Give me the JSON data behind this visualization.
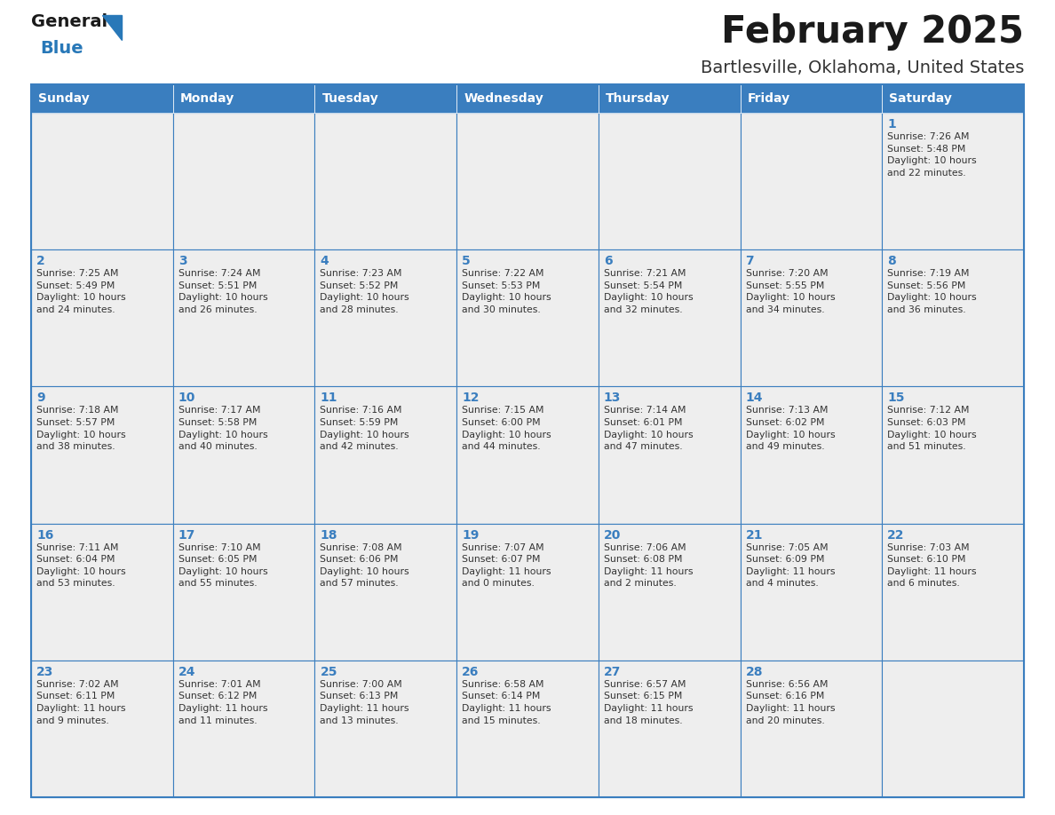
{
  "title": "February 2025",
  "subtitle": "Bartlesville, Oklahoma, United States",
  "days_of_week": [
    "Sunday",
    "Monday",
    "Tuesday",
    "Wednesday",
    "Thursday",
    "Friday",
    "Saturday"
  ],
  "header_bg": "#3a7ebf",
  "header_text": "#FFFFFF",
  "cell_bg": "#eeeeee",
  "border_color": "#3a7ebf",
  "text_color": "#333333",
  "day_num_color": "#3a7ebf",
  "title_color": "#1a1a1a",
  "subtitle_color": "#333333",
  "logo_general_color": "#1a1a1a",
  "logo_blue_color": "#2878b8",
  "weeks": [
    [
      {
        "day": null,
        "info": ""
      },
      {
        "day": null,
        "info": ""
      },
      {
        "day": null,
        "info": ""
      },
      {
        "day": null,
        "info": ""
      },
      {
        "day": null,
        "info": ""
      },
      {
        "day": null,
        "info": ""
      },
      {
        "day": 1,
        "info": "Sunrise: 7:26 AM\nSunset: 5:48 PM\nDaylight: 10 hours\nand 22 minutes."
      }
    ],
    [
      {
        "day": 2,
        "info": "Sunrise: 7:25 AM\nSunset: 5:49 PM\nDaylight: 10 hours\nand 24 minutes."
      },
      {
        "day": 3,
        "info": "Sunrise: 7:24 AM\nSunset: 5:51 PM\nDaylight: 10 hours\nand 26 minutes."
      },
      {
        "day": 4,
        "info": "Sunrise: 7:23 AM\nSunset: 5:52 PM\nDaylight: 10 hours\nand 28 minutes."
      },
      {
        "day": 5,
        "info": "Sunrise: 7:22 AM\nSunset: 5:53 PM\nDaylight: 10 hours\nand 30 minutes."
      },
      {
        "day": 6,
        "info": "Sunrise: 7:21 AM\nSunset: 5:54 PM\nDaylight: 10 hours\nand 32 minutes."
      },
      {
        "day": 7,
        "info": "Sunrise: 7:20 AM\nSunset: 5:55 PM\nDaylight: 10 hours\nand 34 minutes."
      },
      {
        "day": 8,
        "info": "Sunrise: 7:19 AM\nSunset: 5:56 PM\nDaylight: 10 hours\nand 36 minutes."
      }
    ],
    [
      {
        "day": 9,
        "info": "Sunrise: 7:18 AM\nSunset: 5:57 PM\nDaylight: 10 hours\nand 38 minutes."
      },
      {
        "day": 10,
        "info": "Sunrise: 7:17 AM\nSunset: 5:58 PM\nDaylight: 10 hours\nand 40 minutes."
      },
      {
        "day": 11,
        "info": "Sunrise: 7:16 AM\nSunset: 5:59 PM\nDaylight: 10 hours\nand 42 minutes."
      },
      {
        "day": 12,
        "info": "Sunrise: 7:15 AM\nSunset: 6:00 PM\nDaylight: 10 hours\nand 44 minutes."
      },
      {
        "day": 13,
        "info": "Sunrise: 7:14 AM\nSunset: 6:01 PM\nDaylight: 10 hours\nand 47 minutes."
      },
      {
        "day": 14,
        "info": "Sunrise: 7:13 AM\nSunset: 6:02 PM\nDaylight: 10 hours\nand 49 minutes."
      },
      {
        "day": 15,
        "info": "Sunrise: 7:12 AM\nSunset: 6:03 PM\nDaylight: 10 hours\nand 51 minutes."
      }
    ],
    [
      {
        "day": 16,
        "info": "Sunrise: 7:11 AM\nSunset: 6:04 PM\nDaylight: 10 hours\nand 53 minutes."
      },
      {
        "day": 17,
        "info": "Sunrise: 7:10 AM\nSunset: 6:05 PM\nDaylight: 10 hours\nand 55 minutes."
      },
      {
        "day": 18,
        "info": "Sunrise: 7:08 AM\nSunset: 6:06 PM\nDaylight: 10 hours\nand 57 minutes."
      },
      {
        "day": 19,
        "info": "Sunrise: 7:07 AM\nSunset: 6:07 PM\nDaylight: 11 hours\nand 0 minutes."
      },
      {
        "day": 20,
        "info": "Sunrise: 7:06 AM\nSunset: 6:08 PM\nDaylight: 11 hours\nand 2 minutes."
      },
      {
        "day": 21,
        "info": "Sunrise: 7:05 AM\nSunset: 6:09 PM\nDaylight: 11 hours\nand 4 minutes."
      },
      {
        "day": 22,
        "info": "Sunrise: 7:03 AM\nSunset: 6:10 PM\nDaylight: 11 hours\nand 6 minutes."
      }
    ],
    [
      {
        "day": 23,
        "info": "Sunrise: 7:02 AM\nSunset: 6:11 PM\nDaylight: 11 hours\nand 9 minutes."
      },
      {
        "day": 24,
        "info": "Sunrise: 7:01 AM\nSunset: 6:12 PM\nDaylight: 11 hours\nand 11 minutes."
      },
      {
        "day": 25,
        "info": "Sunrise: 7:00 AM\nSunset: 6:13 PM\nDaylight: 11 hours\nand 13 minutes."
      },
      {
        "day": 26,
        "info": "Sunrise: 6:58 AM\nSunset: 6:14 PM\nDaylight: 11 hours\nand 15 minutes."
      },
      {
        "day": 27,
        "info": "Sunrise: 6:57 AM\nSunset: 6:15 PM\nDaylight: 11 hours\nand 18 minutes."
      },
      {
        "day": 28,
        "info": "Sunrise: 6:56 AM\nSunset: 6:16 PM\nDaylight: 11 hours\nand 20 minutes."
      },
      {
        "day": null,
        "info": ""
      }
    ]
  ]
}
